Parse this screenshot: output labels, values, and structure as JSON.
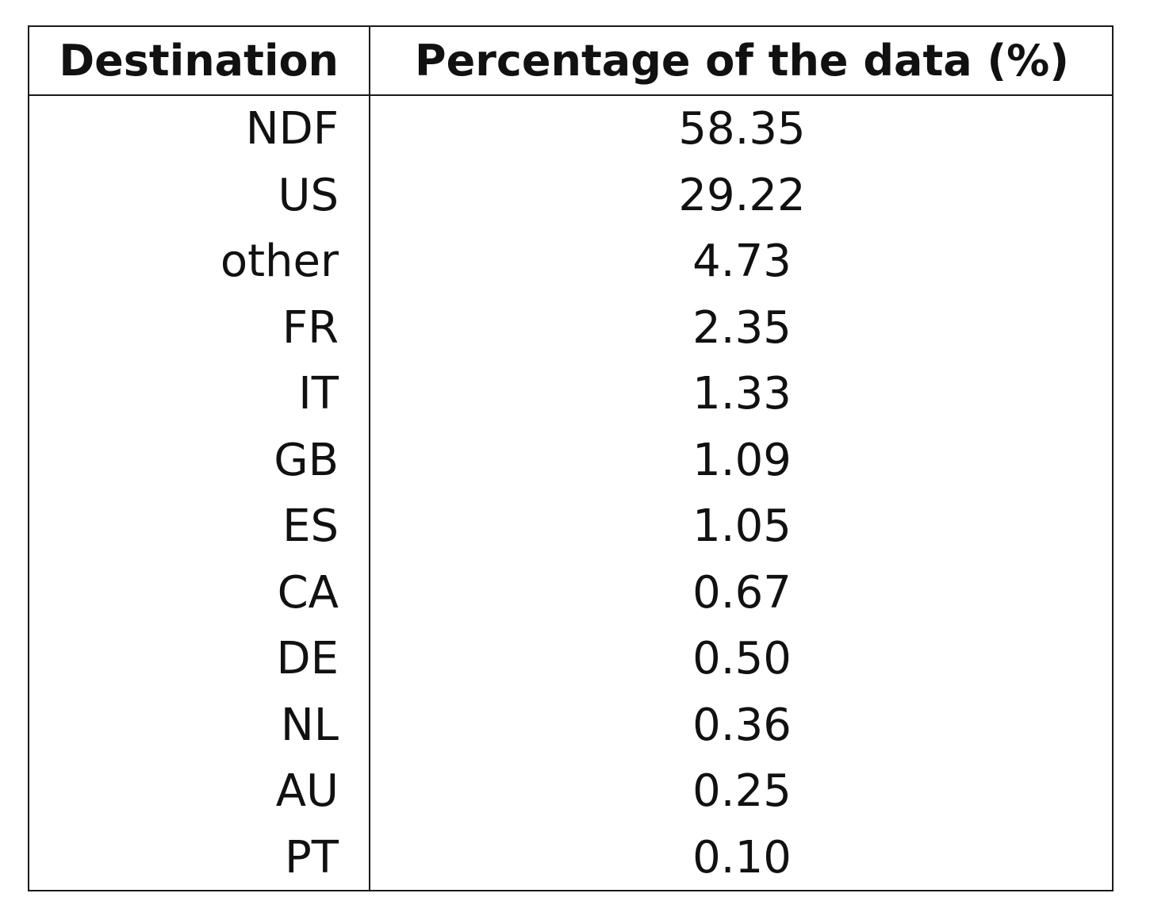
{
  "chart_data": {
    "type": "table",
    "columns": [
      "Destination",
      "Percentage of the data (%)"
    ],
    "rows": [
      {
        "destination": "NDF",
        "percentage": "58.35"
      },
      {
        "destination": "US",
        "percentage": "29.22"
      },
      {
        "destination": "other",
        "percentage": "4.73"
      },
      {
        "destination": "FR",
        "percentage": "2.35"
      },
      {
        "destination": "IT",
        "percentage": "1.33"
      },
      {
        "destination": "GB",
        "percentage": "1.09"
      },
      {
        "destination": "ES",
        "percentage": "1.05"
      },
      {
        "destination": "CA",
        "percentage": "0.67"
      },
      {
        "destination": "DE",
        "percentage": "0.50"
      },
      {
        "destination": "NL",
        "percentage": "0.36"
      },
      {
        "destination": "AU",
        "percentage": "0.25"
      },
      {
        "destination": "PT",
        "percentage": "0.10"
      }
    ]
  },
  "colors": {
    "border": "#1a1a1a",
    "text": "#111111",
    "background": "#ffffff"
  }
}
